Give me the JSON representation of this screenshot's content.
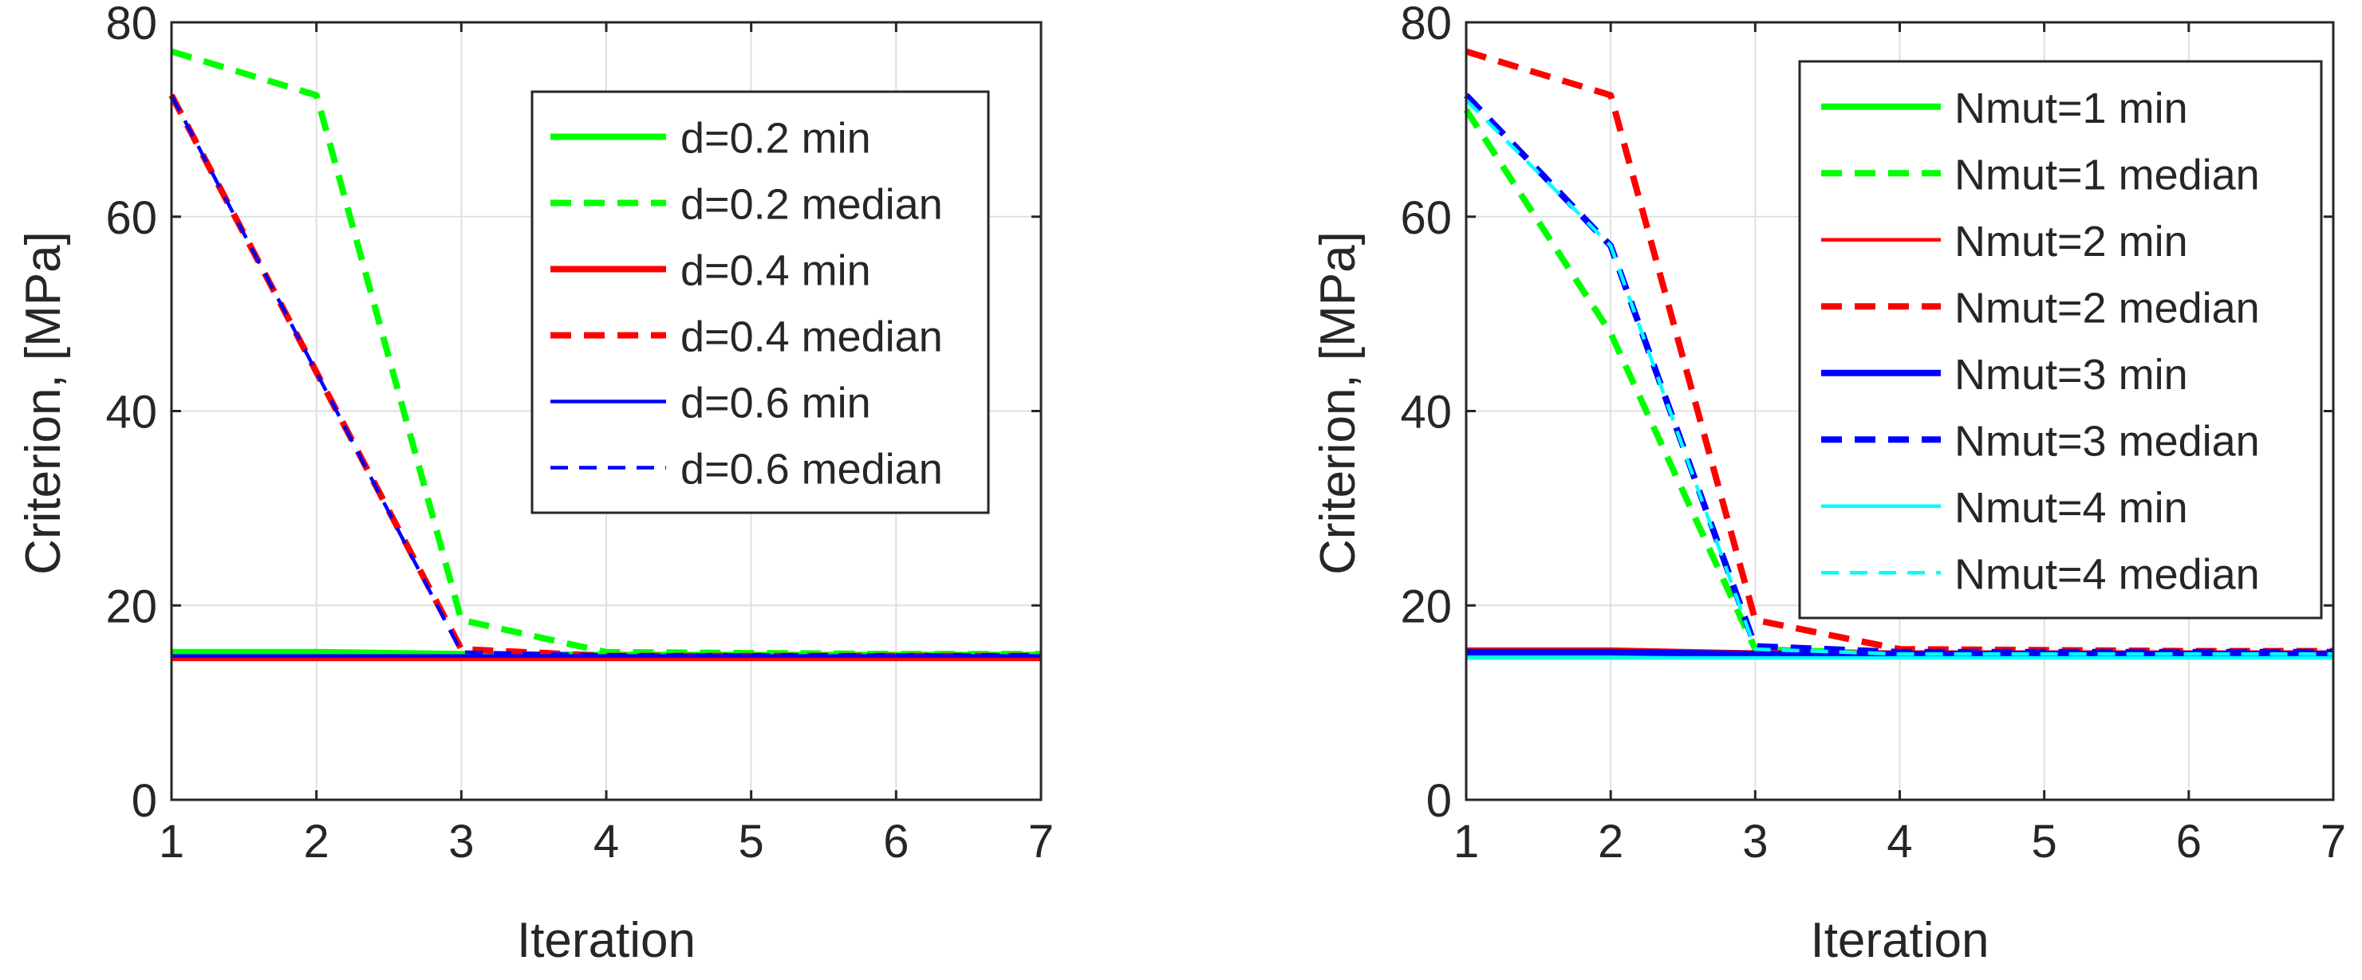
{
  "chart_data": [
    {
      "type": "line",
      "title": "",
      "xlabel": "Iteration",
      "ylabel": "Criterion, [MPa]",
      "xlim": [
        1,
        7
      ],
      "ylim": [
        0,
        80
      ],
      "grid": true,
      "legend_position": "top-right",
      "x_ticks": [
        "1",
        "2",
        "3",
        "4",
        "5",
        "6",
        "7"
      ],
      "y_ticks": [
        "0",
        "20",
        "40",
        "60",
        "80"
      ],
      "x": [
        1,
        2,
        3,
        4,
        5,
        6,
        7
      ],
      "series": [
        {
          "name": "d=0.2 min",
          "color": "#00ff00",
          "style": "solid",
          "weight": "thick",
          "values": [
            15.2,
            15.2,
            15.0,
            14.9,
            14.9,
            14.9,
            14.9
          ]
        },
        {
          "name": "d=0.2 median",
          "color": "#00ff00",
          "style": "dashed",
          "weight": "thick",
          "values": [
            77,
            72.5,
            18.5,
            15.2,
            15.1,
            15.0,
            15.0
          ]
        },
        {
          "name": "d=0.4 min",
          "color": "#ff0000",
          "style": "solid",
          "weight": "thick",
          "values": [
            14.6,
            14.6,
            14.6,
            14.6,
            14.6,
            14.6,
            14.6
          ]
        },
        {
          "name": "d=0.4 median",
          "color": "#ff0000",
          "style": "dashed",
          "weight": "thick",
          "values": [
            72.5,
            44,
            15.5,
            14.8,
            14.8,
            14.8,
            14.8
          ]
        },
        {
          "name": "d=0.6 min",
          "color": "#0000ff",
          "style": "solid",
          "weight": "thin",
          "values": [
            14.8,
            14.8,
            14.8,
            14.8,
            14.8,
            14.8,
            14.8
          ]
        },
        {
          "name": "d=0.6 median",
          "color": "#0000ff",
          "style": "dashed",
          "weight": "thin",
          "values": [
            72.5,
            44,
            15.2,
            14.9,
            14.9,
            14.9,
            14.9
          ]
        }
      ]
    },
    {
      "type": "line",
      "title": "",
      "xlabel": "Iteration",
      "ylabel": "Criterion, [MPa]",
      "xlim": [
        1,
        7
      ],
      "ylim": [
        0,
        80
      ],
      "grid": true,
      "legend_position": "top-right",
      "x_ticks": [
        "1",
        "2",
        "3",
        "4",
        "5",
        "6",
        "7"
      ],
      "y_ticks": [
        "0",
        "20",
        "40",
        "60",
        "80"
      ],
      "x": [
        1,
        2,
        3,
        4,
        5,
        6,
        7
      ],
      "series": [
        {
          "name": "Nmut=1 min",
          "color": "#00ff00",
          "style": "solid",
          "weight": "thick",
          "values": [
            15.0,
            15.0,
            14.9,
            14.9,
            14.9,
            14.9,
            14.9
          ]
        },
        {
          "name": "Nmut=1 median",
          "color": "#00ff00",
          "style": "dashed",
          "weight": "thick",
          "values": [
            71,
            48,
            15.5,
            15.0,
            15.0,
            15.0,
            15.0
          ]
        },
        {
          "name": "Nmut=2 min",
          "color": "#ff0000",
          "style": "solid",
          "weight": "thin",
          "values": [
            15.5,
            15.5,
            15.2,
            15.2,
            15.2,
            15.2,
            15.2
          ]
        },
        {
          "name": "Nmut=2 median",
          "color": "#ff0000",
          "style": "dashed",
          "weight": "thick",
          "values": [
            77,
            72.5,
            18.5,
            15.5,
            15.4,
            15.3,
            15.3
          ]
        },
        {
          "name": "Nmut=3 min",
          "color": "#0000ff",
          "style": "solid",
          "weight": "thick",
          "values": [
            15.2,
            15.2,
            15.0,
            15.0,
            15.0,
            15.0,
            15.0
          ]
        },
        {
          "name": "Nmut=3 median",
          "color": "#0000ff",
          "style": "dashed",
          "weight": "thick",
          "values": [
            72.5,
            57,
            15.8,
            15.2,
            15.2,
            15.2,
            15.2
          ]
        },
        {
          "name": "Nmut=4 min",
          "color": "#00ffff",
          "style": "solid",
          "weight": "thin",
          "values": [
            14.6,
            14.6,
            14.6,
            14.6,
            14.6,
            14.6,
            14.6
          ]
        },
        {
          "name": "Nmut=4 median",
          "color": "#00ffff",
          "style": "dashed",
          "weight": "thin",
          "values": [
            72,
            57,
            15.5,
            15.0,
            15.0,
            15.0,
            15.0
          ]
        }
      ]
    }
  ]
}
